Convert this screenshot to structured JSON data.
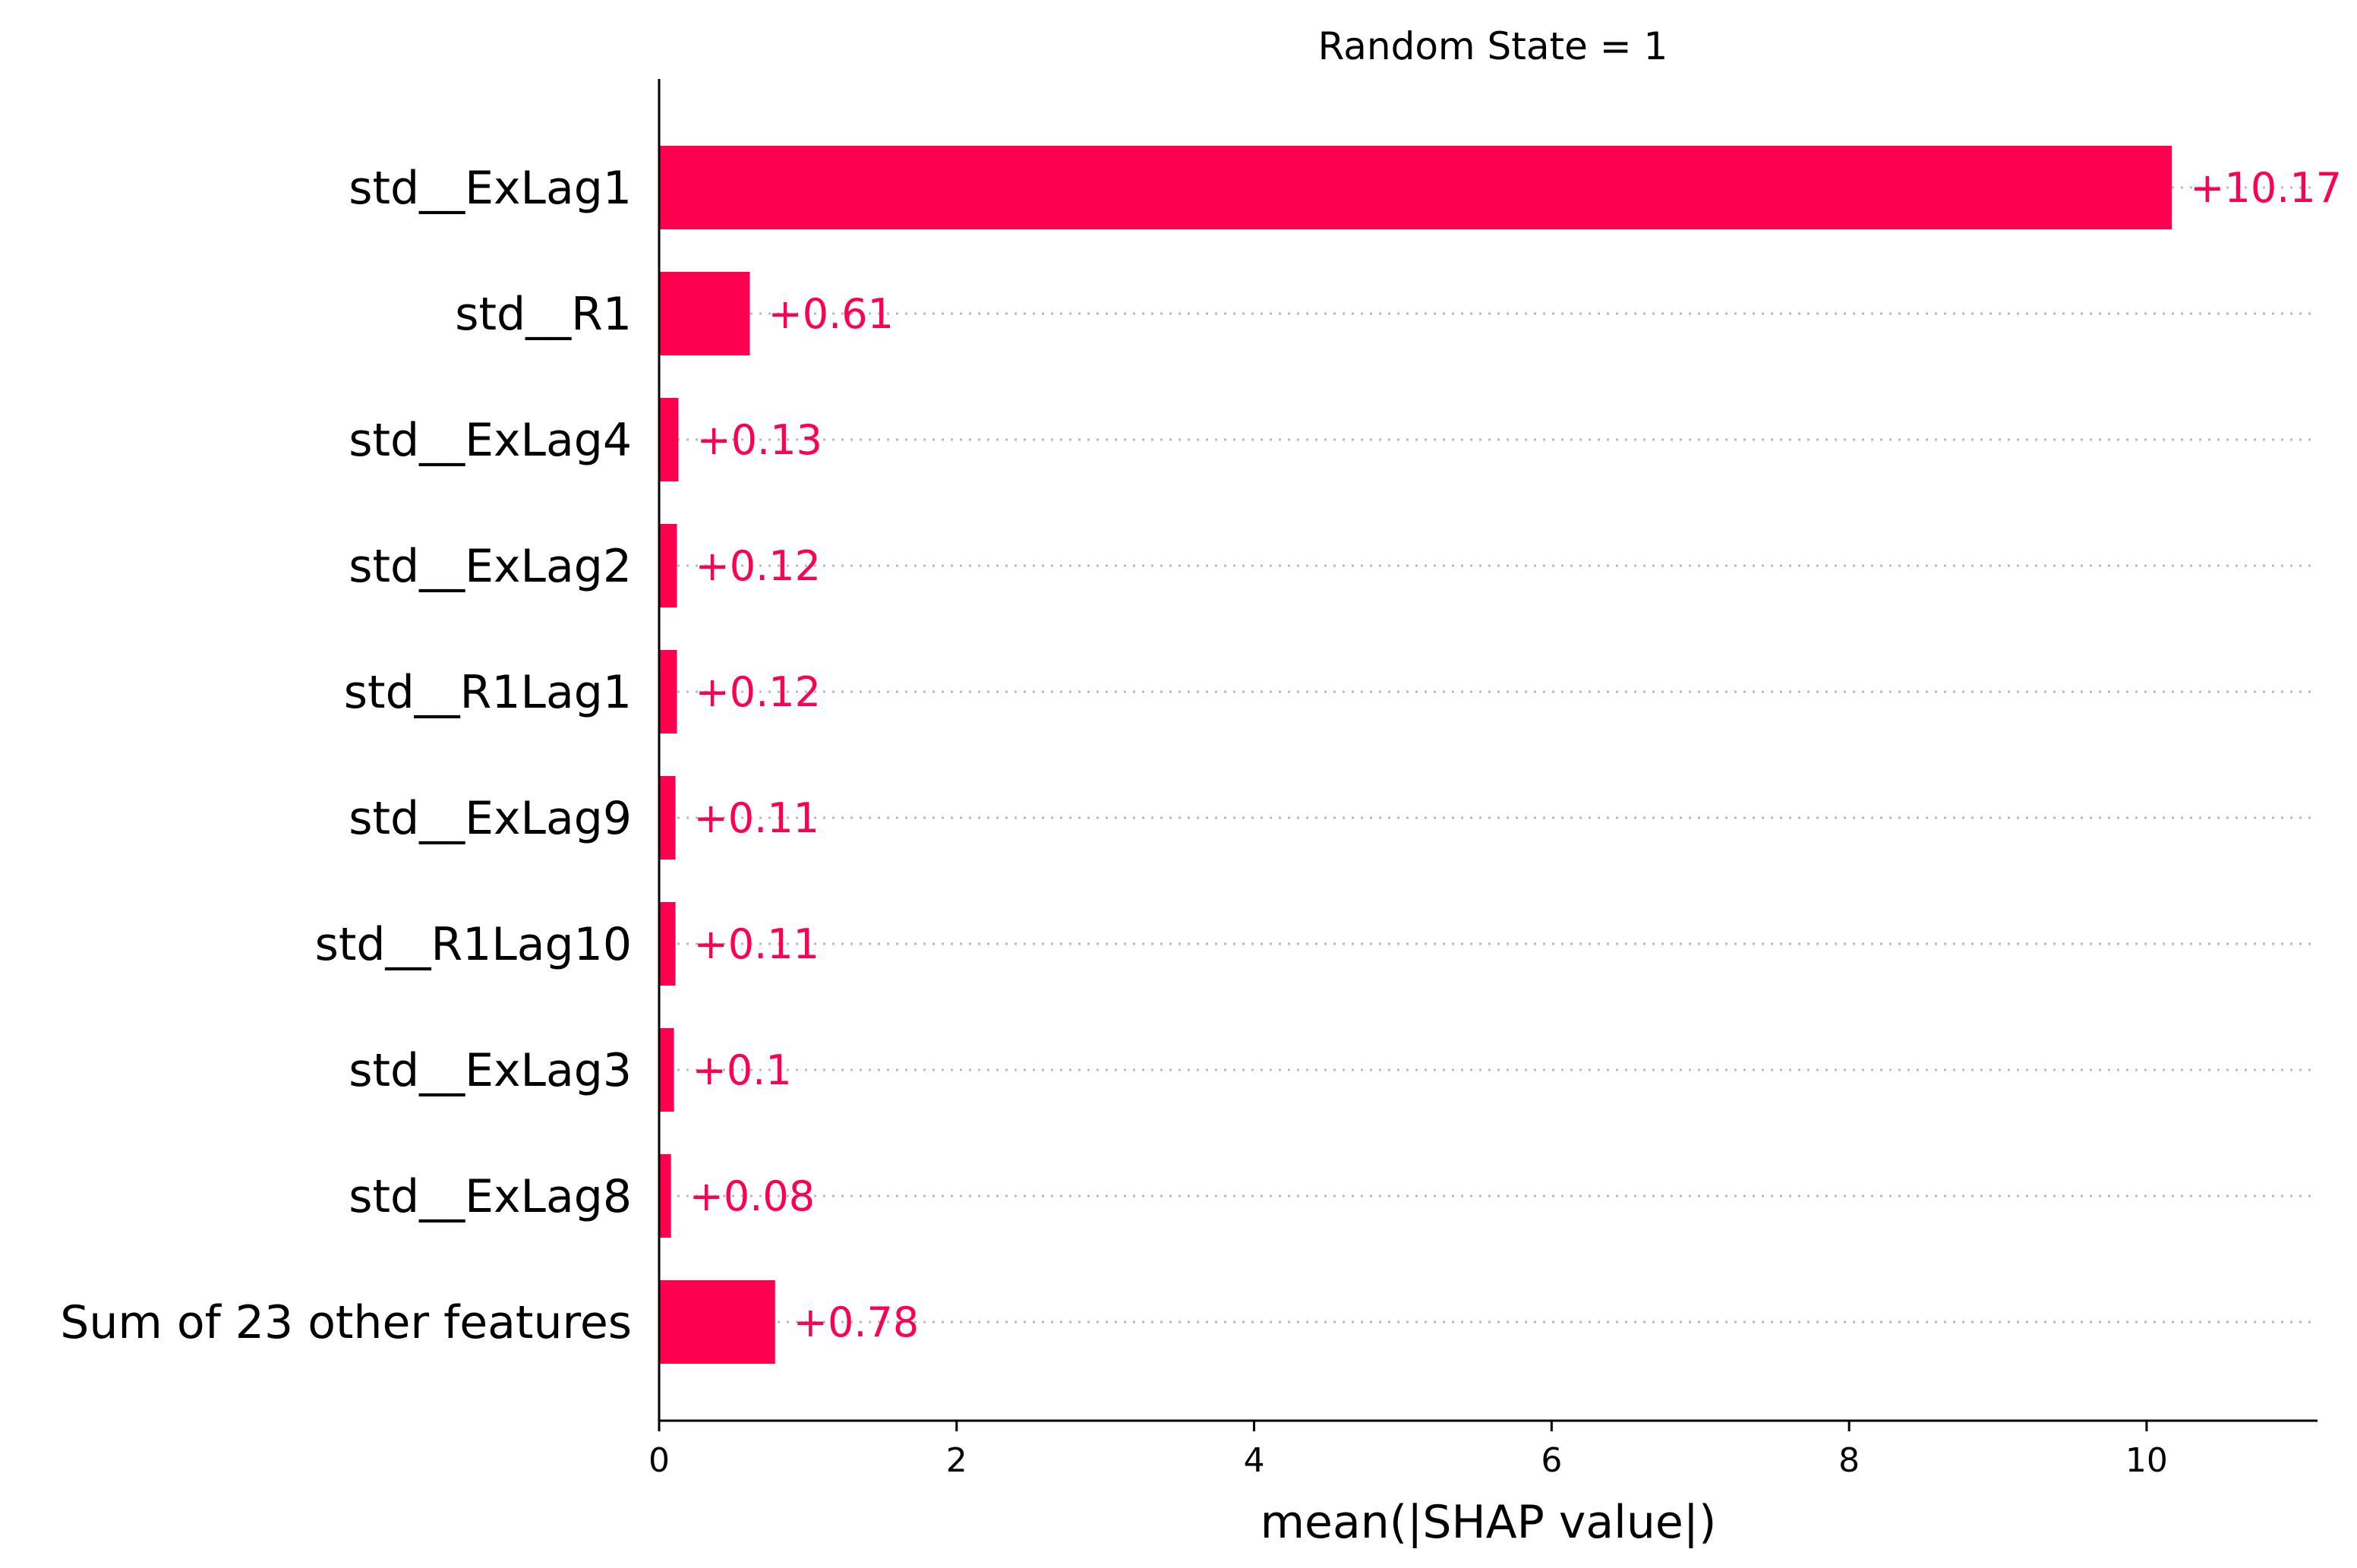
{
  "chart_data": {
    "type": "bar",
    "orientation": "horizontal",
    "title": "Random State = 1",
    "xlabel": "mean(|SHAP value|)",
    "ylabel": "",
    "categories": [
      "std__ExLag1",
      "std__R1",
      "std__ExLag4",
      "std__ExLag2",
      "std__R1Lag1",
      "std__ExLag9",
      "std__R1Lag10",
      "std__ExLag3",
      "std__ExLag8",
      "Sum of 23 other features"
    ],
    "values": [
      10.17,
      0.61,
      0.13,
      0.12,
      0.12,
      0.11,
      0.11,
      0.1,
      0.08,
      0.78
    ],
    "value_labels": [
      "+10.17",
      "+0.61",
      "+0.13",
      "+0.12",
      "+0.12",
      "+0.11",
      "+0.11",
      "+0.1",
      "+0.08",
      "+0.78"
    ],
    "xlim": [
      0,
      11.2
    ],
    "xticks": [
      0,
      2,
      4,
      6,
      8,
      10
    ],
    "xtick_labels": [
      "0",
      "2",
      "4",
      "6",
      "8",
      "10"
    ],
    "grid": "dotted horizontal guide lines per bar",
    "colors": {
      "bar": "#ff0051",
      "value_label": "#ff0051",
      "axis": "#000000",
      "guide": "#bbbbbb"
    }
  }
}
